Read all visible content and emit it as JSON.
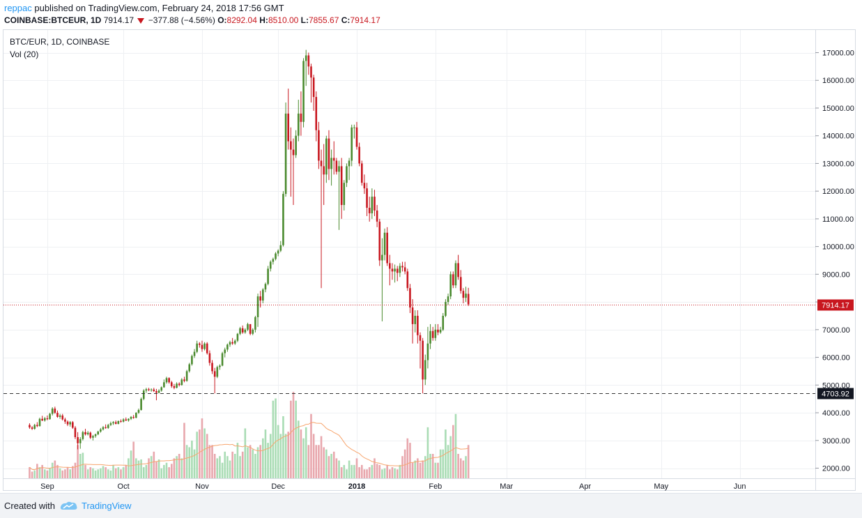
{
  "header": {
    "user": "reppac",
    "published": " published on TradingView.com, February 24, 2018 17:56 GMT",
    "symbol_line": "COINBASE:BTCEUR, 1D",
    "last": "7914.17",
    "change": "−377.88 (−4.56%)",
    "o_label": "O:",
    "o_value": "8292.04",
    "h_label": "H:",
    "h_value": "8510.00",
    "l_label": "L:",
    "l_value": "7855.67",
    "c_label": "C:",
    "c_value": "7914.17"
  },
  "footer": {
    "created": "Created with",
    "brand": "TradingView"
  },
  "colors": {
    "up": "#53b987",
    "up_body": "#4a8a2e",
    "down": "#c8171f",
    "vol_up": "#a9dcb4",
    "vol_down": "#e8a7ad",
    "ma": "#f7a46c",
    "grid": "#eef0f3",
    "price_line": "#c8171f",
    "support": "#333333"
  },
  "chart_data": {
    "type": "candlestick",
    "title": "BTC/EUR, 1D, COINBASE",
    "indicator_label": "Vol (20)",
    "y_axis_ticks": [
      "2000.00",
      "3000.00",
      "4000.00",
      "5000.00",
      "6000.00",
      "7000.00",
      "8000.00",
      "9000.00",
      "10000.00",
      "11000.00",
      "12000.00",
      "13000.00",
      "14000.00",
      "15000.00",
      "16000.00",
      "17000.00"
    ],
    "ylim": [
      1700,
      17300
    ],
    "x_axis_ticks": [
      "Sep",
      "Oct",
      "Nov",
      "Dec",
      "2018",
      "Feb",
      "Mar",
      "Apr",
      "May",
      "Jun"
    ],
    "x_tick_days": [
      3,
      33,
      64,
      94,
      125,
      156,
      184,
      215,
      245,
      276
    ],
    "last_price_label": "7914.17",
    "last_price": 7914.17,
    "support_label": "4703.92",
    "support_level": 4703.92,
    "volume_ma_period": 20,
    "candles": [
      [
        -4,
        3560,
        3620,
        3420,
        3470
      ],
      [
        -3,
        3470,
        3520,
        3380,
        3420
      ],
      [
        -2,
        3420,
        3600,
        3390,
        3560
      ],
      [
        -1,
        3560,
        3660,
        3480,
        3520
      ],
      [
        0,
        3520,
        3820,
        3500,
        3780
      ],
      [
        1,
        3780,
        3890,
        3700,
        3720
      ],
      [
        2,
        3720,
        3850,
        3680,
        3800
      ],
      [
        3,
        3800,
        3900,
        3730,
        3770
      ],
      [
        4,
        3770,
        4000,
        3750,
        3960
      ],
      [
        5,
        3960,
        4200,
        3900,
        4150
      ],
      [
        6,
        4150,
        4220,
        3960,
        4000
      ],
      [
        7,
        4000,
        4080,
        3820,
        3850
      ],
      [
        8,
        3850,
        3960,
        3780,
        3900
      ],
      [
        9,
        3900,
        3960,
        3720,
        3760
      ],
      [
        10,
        3760,
        3820,
        3600,
        3680
      ],
      [
        11,
        3680,
        3720,
        3520,
        3580
      ],
      [
        12,
        3580,
        3700,
        3500,
        3660
      ],
      [
        13,
        3660,
        3700,
        3420,
        3460
      ],
      [
        14,
        3460,
        3520,
        3050,
        3120
      ],
      [
        15,
        3120,
        3300,
        2680,
        2900
      ],
      [
        16,
        2900,
        3120,
        2700,
        3050
      ],
      [
        17,
        3050,
        3350,
        3000,
        3300
      ],
      [
        18,
        3300,
        3420,
        3180,
        3220
      ],
      [
        19,
        3220,
        3340,
        3180,
        3280
      ],
      [
        20,
        3280,
        3320,
        3050,
        3100
      ],
      [
        21,
        3100,
        3200,
        3000,
        3160
      ],
      [
        22,
        3160,
        3250,
        3100,
        3220
      ],
      [
        23,
        3220,
        3350,
        3190,
        3320
      ],
      [
        24,
        3320,
        3450,
        3280,
        3400
      ],
      [
        25,
        3400,
        3520,
        3360,
        3480
      ],
      [
        26,
        3480,
        3580,
        3420,
        3450
      ],
      [
        27,
        3450,
        3600,
        3420,
        3560
      ],
      [
        28,
        3560,
        3680,
        3520,
        3620
      ],
      [
        29,
        3620,
        3700,
        3560,
        3660
      ],
      [
        30,
        3660,
        3720,
        3580,
        3600
      ],
      [
        31,
        3600,
        3720,
        3580,
        3700
      ],
      [
        32,
        3700,
        3760,
        3640,
        3680
      ],
      [
        33,
        3680,
        3800,
        3650,
        3760
      ],
      [
        34,
        3760,
        3830,
        3700,
        3720
      ],
      [
        35,
        3720,
        3800,
        3680,
        3780
      ],
      [
        36,
        3780,
        3880,
        3740,
        3850
      ],
      [
        37,
        3850,
        3920,
        3780,
        3820
      ],
      [
        38,
        3820,
        4020,
        3800,
        4000
      ],
      [
        39,
        4000,
        4150,
        3960,
        4100
      ],
      [
        40,
        4100,
        4550,
        4080,
        4500
      ],
      [
        41,
        4500,
        4850,
        4450,
        4800
      ],
      [
        42,
        4800,
        4900,
        4720,
        4850
      ],
      [
        43,
        4850,
        4900,
        4780,
        4820
      ],
      [
        44,
        4820,
        4880,
        4760,
        4840
      ],
      [
        45,
        4840,
        4900,
        4750,
        4780
      ],
      [
        46,
        4780,
        4860,
        4450,
        4720
      ],
      [
        47,
        4720,
        4850,
        4700,
        4800
      ],
      [
        48,
        4800,
        4950,
        4760,
        4920
      ],
      [
        49,
        4920,
        5200,
        4900,
        5100
      ],
      [
        50,
        5100,
        5300,
        5050,
        5250
      ],
      [
        51,
        5250,
        5280,
        5050,
        5100
      ],
      [
        52,
        5100,
        5150,
        4900,
        4960
      ],
      [
        53,
        4960,
        5040,
        4850,
        4900
      ],
      [
        54,
        4900,
        5100,
        4880,
        5050
      ],
      [
        55,
        5050,
        5100,
        4950,
        5000
      ],
      [
        56,
        5000,
        5250,
        4980,
        5200
      ],
      [
        57,
        5200,
        5300,
        5100,
        5150
      ],
      [
        58,
        5150,
        5550,
        5120,
        5500
      ],
      [
        59,
        5500,
        5800,
        5450,
        5750
      ],
      [
        60,
        5750,
        6100,
        5700,
        6050
      ],
      [
        61,
        6050,
        6300,
        5980,
        6200
      ],
      [
        62,
        6200,
        6600,
        6150,
        6500
      ],
      [
        63,
        6500,
        6550,
        6350,
        6450
      ],
      [
        64,
        6450,
        6600,
        6200,
        6300
      ],
      [
        65,
        6300,
        6550,
        6250,
        6500
      ],
      [
        66,
        6500,
        6550,
        6100,
        6150
      ],
      [
        67,
        6150,
        6250,
        5700,
        5800
      ],
      [
        68,
        5800,
        5900,
        5400,
        5500
      ],
      [
        69,
        5500,
        5620,
        4700,
        5300
      ],
      [
        70,
        5300,
        5700,
        5250,
        5650
      ],
      [
        71,
        5650,
        5750,
        5550,
        5700
      ],
      [
        72,
        5700,
        6200,
        5680,
        6150
      ],
      [
        73,
        6150,
        6350,
        6000,
        6280
      ],
      [
        74,
        6280,
        6500,
        6200,
        6460
      ],
      [
        75,
        6460,
        6600,
        6380,
        6550
      ],
      [
        76,
        6550,
        6700,
        6450,
        6500
      ],
      [
        77,
        6500,
        6650,
        6450,
        6600
      ],
      [
        78,
        6600,
        6880,
        6550,
        6850
      ],
      [
        79,
        6850,
        7100,
        6800,
        7050
      ],
      [
        80,
        7050,
        7150,
        6850,
        6900
      ],
      [
        81,
        6900,
        7050,
        6850,
        7000
      ],
      [
        82,
        7000,
        7250,
        6950,
        7200
      ],
      [
        83,
        7200,
        7200,
        6800,
        6850
      ],
      [
        84,
        6850,
        7050,
        6800,
        7000
      ],
      [
        85,
        7000,
        7500,
        6900,
        7450
      ],
      [
        86,
        7450,
        8300,
        7100,
        8200
      ],
      [
        87,
        8200,
        8400,
        7800,
        8050
      ],
      [
        88,
        8050,
        8500,
        7950,
        8450
      ],
      [
        89,
        8450,
        8700,
        8350,
        8650
      ],
      [
        90,
        8650,
        9300,
        8600,
        9200
      ],
      [
        91,
        9200,
        9500,
        9100,
        9450
      ],
      [
        92,
        9450,
        9600,
        9350,
        9550
      ],
      [
        93,
        9550,
        9800,
        9500,
        9750
      ],
      [
        94,
        9750,
        9900,
        9650,
        9850
      ],
      [
        95,
        9850,
        10200,
        9800,
        10050
      ],
      [
        96,
        10050,
        12000,
        10000,
        11900
      ],
      [
        97,
        11900,
        15200,
        11800,
        14800
      ],
      [
        98,
        14800,
        15700,
        13500,
        13800
      ],
      [
        99,
        13800,
        14300,
        11800,
        13500
      ],
      [
        100,
        13500,
        13900,
        11500,
        13300
      ],
      [
        101,
        13300,
        14200,
        13200,
        14000
      ],
      [
        102,
        14000,
        15300,
        13800,
        14800
      ],
      [
        103,
        14800,
        15600,
        14000,
        14500
      ],
      [
        104,
        14500,
        16800,
        14300,
        16700
      ],
      [
        105,
        16700,
        17100,
        15800,
        16900
      ],
      [
        106,
        16900,
        17000,
        16200,
        16500
      ],
      [
        107,
        16500,
        16600,
        15200,
        16100
      ],
      [
        108,
        16100,
        16200,
        14900,
        15400
      ],
      [
        109,
        15400,
        15600,
        13800,
        14200
      ],
      [
        110,
        14200,
        14500,
        12800,
        13100
      ],
      [
        111,
        13100,
        13500,
        8500,
        12900
      ],
      [
        112,
        12900,
        13700,
        11500,
        12600
      ],
      [
        113,
        12600,
        14000,
        12300,
        13900
      ],
      [
        114,
        13900,
        14200,
        12400,
        12800
      ],
      [
        115,
        12800,
        13500,
        12200,
        13200
      ],
      [
        116,
        13200,
        13800,
        12600,
        13100
      ],
      [
        117,
        13100,
        13200,
        12600,
        12700
      ],
      [
        118,
        12700,
        13100,
        10600,
        12900
      ],
      [
        119,
        12900,
        13200,
        11000,
        11500
      ],
      [
        120,
        11500,
        12400,
        11300,
        12300
      ],
      [
        121,
        12300,
        13000,
        12150,
        12900
      ],
      [
        122,
        12900,
        13200,
        12400,
        13100
      ],
      [
        123,
        13100,
        14400,
        12900,
        14300
      ],
      [
        124,
        14300,
        14400,
        13900,
        14300
      ],
      [
        125,
        14300,
        14500,
        13500,
        13600
      ],
      [
        126,
        13600,
        13750,
        12900,
        13000
      ],
      [
        127,
        13000,
        13100,
        12200,
        12300
      ],
      [
        128,
        12300,
        12600,
        11900,
        12100
      ],
      [
        129,
        12100,
        12300,
        11100,
        11400
      ],
      [
        130,
        11400,
        11800,
        10900,
        11200
      ],
      [
        131,
        11200,
        12100,
        11000,
        11800
      ],
      [
        132,
        11800,
        12050,
        11100,
        11300
      ],
      [
        133,
        11300,
        11500,
        10700,
        10900
      ],
      [
        134,
        10900,
        11000,
        9300,
        9500
      ],
      [
        135,
        9500,
        10300,
        7300,
        9700
      ],
      [
        136,
        9700,
        10650,
        9500,
        10500
      ],
      [
        137,
        10500,
        10700,
        9300,
        9400
      ],
      [
        138,
        9400,
        9700,
        8600,
        9200
      ],
      [
        139,
        9200,
        9400,
        8800,
        9100
      ],
      [
        140,
        9100,
        9350,
        8700,
        9200
      ],
      [
        141,
        9200,
        9300,
        8750,
        9050
      ],
      [
        142,
        9050,
        9400,
        8900,
        9300
      ],
      [
        143,
        9300,
        9450,
        9100,
        9250
      ],
      [
        144,
        9250,
        9450,
        9000,
        9100
      ],
      [
        145,
        9100,
        9200,
        8400,
        8500
      ],
      [
        146,
        8500,
        8650,
        7600,
        7800
      ],
      [
        147,
        7800,
        8100,
        6500,
        7200
      ],
      [
        148,
        7200,
        7700,
        6900,
        7500
      ],
      [
        149,
        7500,
        7700,
        6500,
        6800
      ],
      [
        150,
        6800,
        6900,
        5600,
        6600
      ],
      [
        151,
        6600,
        6700,
        4700,
        5200
      ],
      [
        152,
        5200,
        6100,
        5000,
        5900
      ],
      [
        153,
        5900,
        7100,
        5600,
        6500
      ],
      [
        154,
        6500,
        7200,
        6300,
        6950
      ],
      [
        155,
        6950,
        7100,
        6600,
        6700
      ],
      [
        156,
        6700,
        7200,
        6600,
        7000
      ],
      [
        157,
        7000,
        7200,
        6800,
        6900
      ],
      [
        158,
        6900,
        7100,
        6850,
        7000
      ],
      [
        159,
        7000,
        7600,
        6950,
        7500
      ],
      [
        160,
        7500,
        8100,
        7450,
        8000
      ],
      [
        161,
        8000,
        8300,
        7900,
        8200
      ],
      [
        162,
        8200,
        9100,
        8100,
        9000
      ],
      [
        163,
        9000,
        9100,
        8500,
        8600
      ],
      [
        164,
        8600,
        9500,
        8500,
        9400
      ],
      [
        165,
        9400,
        9700,
        8800,
        8900
      ],
      [
        166,
        8900,
        9150,
        8300,
        8400
      ],
      [
        167,
        8400,
        8500,
        7950,
        8150
      ],
      [
        168,
        8150,
        8550,
        8000,
        8300
      ],
      [
        169,
        8292.04,
        8510,
        7855.67,
        7914.17
      ]
    ],
    "volume_pct": [
      0.1,
      0.06,
      0.07,
      0.13,
      0.1,
      0.12,
      0.08,
      0.07,
      0.09,
      0.14,
      0.16,
      0.12,
      0.09,
      0.07,
      0.08,
      0.1,
      0.08,
      0.11,
      0.14,
      0.3,
      0.22,
      0.23,
      0.12,
      0.08,
      0.1,
      0.09,
      0.07,
      0.08,
      0.09,
      0.11,
      0.1,
      0.08,
      0.07,
      0.12,
      0.09,
      0.1,
      0.08,
      0.1,
      0.12,
      0.18,
      0.25,
      0.33,
      0.18,
      0.16,
      0.17,
      0.1,
      0.12,
      0.18,
      0.2,
      0.24,
      0.15,
      0.17,
      0.09,
      0.12,
      0.14,
      0.1,
      0.13,
      0.18,
      0.2,
      0.22,
      0.18,
      0.5,
      0.3,
      0.28,
      0.34,
      0.26,
      0.42,
      0.44,
      0.54,
      0.45,
      0.4,
      0.3,
      0.3,
      0.22,
      0.18,
      0.2,
      0.14,
      0.24,
      0.2,
      0.16,
      0.24,
      0.22,
      0.32,
      0.2,
      0.24,
      0.45,
      0.28,
      0.3,
      0.26,
      0.22,
      0.28,
      0.3,
      0.36,
      0.44,
      0.32,
      0.4,
      0.7,
      0.72,
      0.48,
      0.4,
      0.56,
      0.4,
      0.42,
      0.7,
      0.78,
      0.7,
      0.52,
      0.44,
      0.36,
      0.46,
      0.3,
      0.58,
      0.4,
      0.3,
      0.3,
      0.38,
      0.28,
      0.26,
      0.2,
      0.22,
      0.24,
      0.18,
      0.16,
      0.1,
      0.12,
      0.08,
      0.16,
      0.12,
      0.12,
      0.18,
      0.1,
      0.12,
      0.08,
      0.08,
      0.1,
      0.12,
      0.18,
      0.13,
      0.12,
      0.08,
      0.09,
      0.12,
      0.08,
      0.1,
      0.09,
      0.08,
      0.12,
      0.2,
      0.26,
      0.36,
      0.32,
      0.14,
      0.16,
      0.18,
      0.14,
      0.16,
      0.2,
      0.46,
      0.22,
      0.22,
      0.14,
      0.14,
      0.26,
      0.26,
      0.44,
      0.3,
      0.38,
      0.48,
      0.58,
      0.22,
      0.18,
      0.16,
      0.2,
      0.3
    ]
  }
}
